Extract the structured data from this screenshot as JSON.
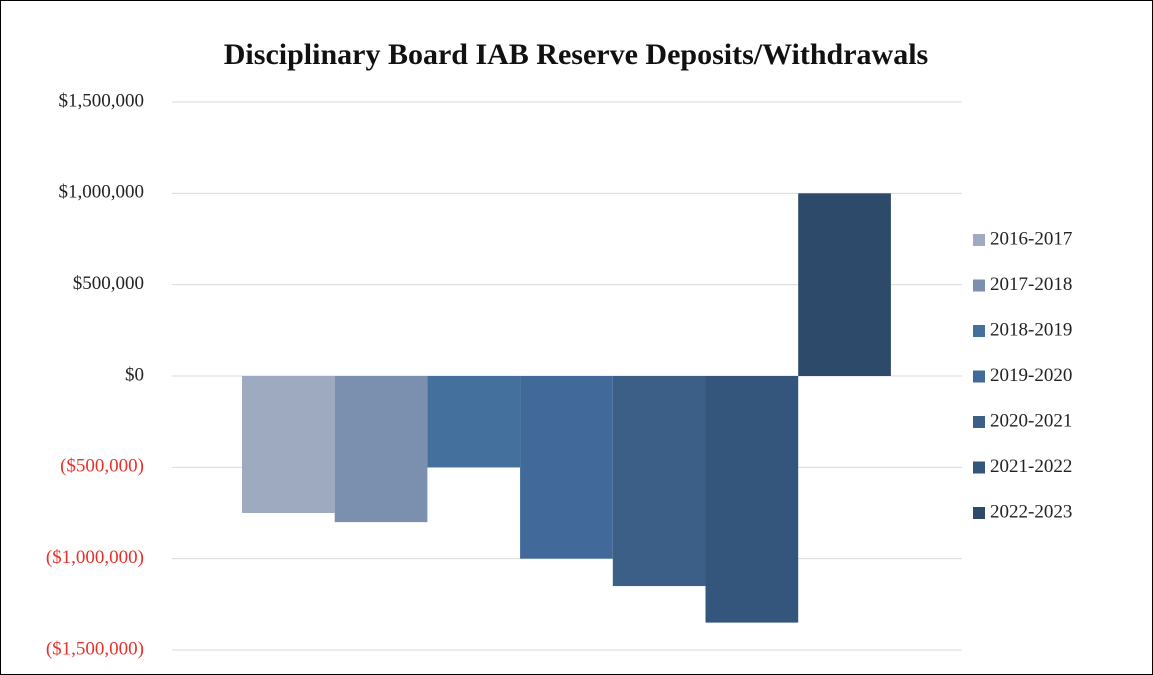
{
  "chart_data": {
    "type": "bar",
    "title": "Disciplinary Board IAB Reserve Deposits/Withdrawals",
    "series": [
      {
        "name": "2016-2017",
        "color": "#9daac0",
        "values": [
          -750000
        ]
      },
      {
        "name": "2017-2018",
        "color": "#7b8fae",
        "values": [
          -800000
        ]
      },
      {
        "name": "2018-2019",
        "color": "#44709e",
        "values": [
          -500000
        ]
      },
      {
        "name": "2019-2020",
        "color": "#41699a",
        "values": [
          -1000000
        ]
      },
      {
        "name": "2020-2021",
        "color": "#3c5f88",
        "values": [
          -1150000
        ]
      },
      {
        "name": "2021-2022",
        "color": "#34567c",
        "values": [
          -1350000
        ]
      },
      {
        "name": "2022-2023",
        "color": "#2e4a6a",
        "values": [
          1000000
        ]
      }
    ],
    "ylim": [
      -1500000,
      1500000
    ],
    "yticks": [
      {
        "value": 1500000,
        "label": "$1,500,000"
      },
      {
        "value": 1000000,
        "label": "$1,000,000"
      },
      {
        "value": 500000,
        "label": "$500,000"
      },
      {
        "value": 0,
        "label": "$0"
      },
      {
        "value": -500000,
        "label": "($500,000)"
      },
      {
        "value": -1000000,
        "label": "($1,000,000)"
      },
      {
        "value": -1500000,
        "label": "($1,500,000)"
      }
    ],
    "negative_tick_color": "#e8302a",
    "grid": true,
    "legend": "right"
  }
}
